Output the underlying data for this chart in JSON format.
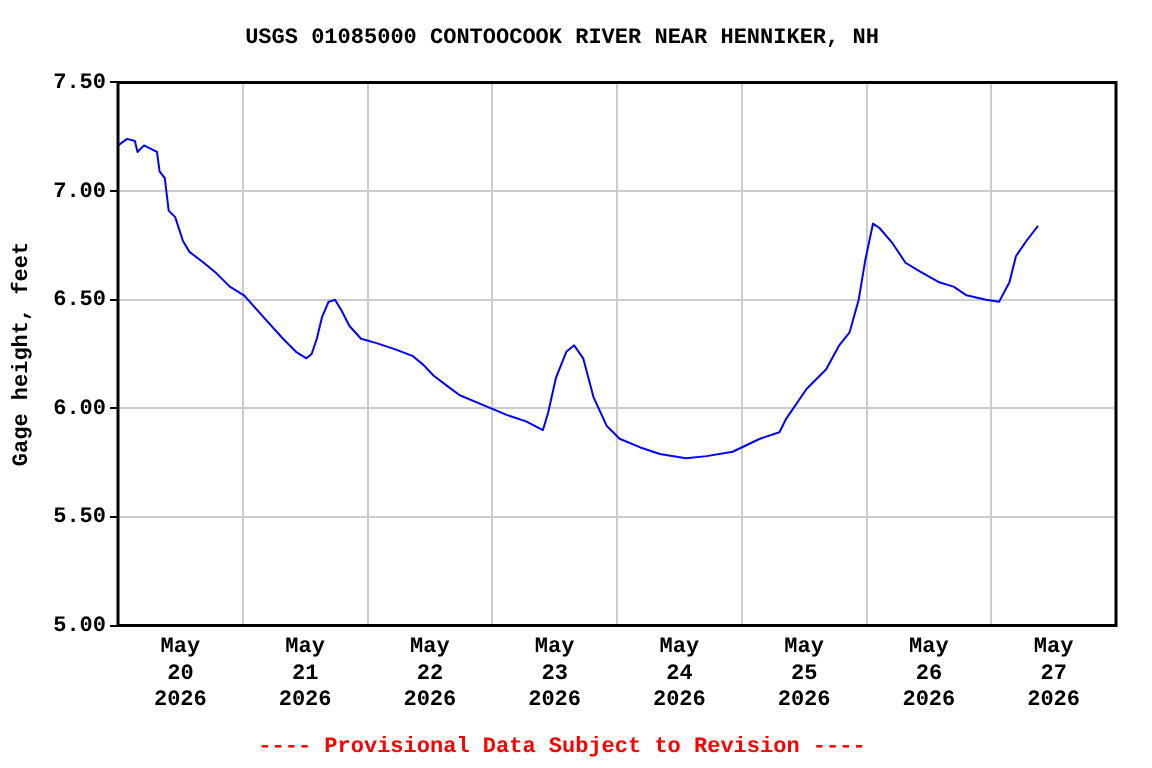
{
  "chart_data": {
    "type": "line",
    "title": "USGS 01085000 CONTOOCOOK RIVER NEAR HENNIKER, NH",
    "ylabel": "Gage height, feet",
    "annotations": [
      "---- Provisional Data Subject to Revision ----"
    ],
    "x": [
      "2026-05-20T00:00",
      "2026-05-20T01:45",
      "2026-05-20T03:15",
      "2026-05-20T03:45",
      "2026-05-20T05:00",
      "2026-05-20T07:30",
      "2026-05-20T08:00",
      "2026-05-20T09:00",
      "2026-05-20T09:45",
      "2026-05-20T11:00",
      "2026-05-20T12:30",
      "2026-05-20T13:45",
      "2026-05-20T16:30",
      "2026-05-20T19:00",
      "2026-05-20T21:30",
      "2026-05-21T00:15",
      "2026-05-21T04:00",
      "2026-05-21T07:45",
      "2026-05-21T10:15",
      "2026-05-21T12:15",
      "2026-05-21T13:15",
      "2026-05-21T14:15",
      "2026-05-21T15:15",
      "2026-05-21T16:30",
      "2026-05-21T17:45",
      "2026-05-21T19:00",
      "2026-05-21T20:30",
      "2026-05-21T22:45",
      "2026-05-22T01:45",
      "2026-05-22T05:30",
      "2026-05-22T08:45",
      "2026-05-22T10:45",
      "2026-05-22T12:45",
      "2026-05-22T15:30",
      "2026-05-22T17:45",
      "2026-05-22T22:45",
      "2026-05-23T02:45",
      "2026-05-23T06:30",
      "2026-05-23T09:45",
      "2026-05-23T10:45",
      "2026-05-23T12:15",
      "2026-05-23T14:15",
      "2026-05-23T15:45",
      "2026-05-23T17:30",
      "2026-05-23T19:30",
      "2026-05-23T22:00",
      "2026-05-24T00:30",
      "2026-05-24T04:30",
      "2026-05-24T08:15",
      "2026-05-24T13:15",
      "2026-05-24T17:15",
      "2026-05-24T22:15",
      "2026-05-25T03:30",
      "2026-05-25T07:15",
      "2026-05-25T08:30",
      "2026-05-25T12:30",
      "2026-05-25T16:15",
      "2026-05-25T18:45",
      "2026-05-25T20:45",
      "2026-05-25T22:30",
      "2026-05-25T23:45",
      "2026-05-26T01:15",
      "2026-05-26T02:30",
      "2026-05-26T05:00",
      "2026-05-26T07:30",
      "2026-05-26T10:15",
      "2026-05-26T14:00",
      "2026-05-26T16:45",
      "2026-05-26T19:15",
      "2026-05-26T23:00",
      "2026-05-27T01:30",
      "2026-05-27T03:30",
      "2026-05-27T04:45",
      "2026-05-27T06:45",
      "2026-05-27T09:00"
    ],
    "series": [
      {
        "color": "#0000ff",
        "values": [
          7.21,
          7.24,
          7.23,
          7.18,
          7.21,
          7.18,
          7.09,
          7.06,
          6.91,
          6.88,
          6.77,
          6.72,
          6.67,
          6.62,
          6.56,
          6.52,
          6.42,
          6.32,
          6.26,
          6.23,
          6.25,
          6.32,
          6.42,
          6.49,
          6.5,
          6.45,
          6.38,
          6.32,
          6.3,
          6.27,
          6.24,
          6.2,
          6.15,
          6.1,
          6.06,
          6.01,
          5.97,
          5.94,
          5.9,
          5.98,
          6.14,
          6.26,
          6.29,
          6.23,
          6.05,
          5.92,
          5.86,
          5.82,
          5.79,
          5.77,
          5.78,
          5.8,
          5.86,
          5.89,
          5.95,
          6.09,
          6.18,
          6.29,
          6.35,
          6.5,
          6.68,
          6.85,
          6.83,
          6.76,
          6.67,
          6.63,
          6.58,
          6.56,
          6.52,
          6.5,
          6.49,
          6.58,
          6.7,
          6.77,
          6.84
        ]
      }
    ],
    "xlim": [
      "2026-05-20T00:00",
      "2026-05-28T00:00"
    ],
    "xticks": [
      {
        "value": "2026-05-20T12:00",
        "label": "May 20 2026"
      },
      {
        "value": "2026-05-21T00:00",
        "label": null
      },
      {
        "value": "2026-05-21T12:00",
        "label": "May 21 2026"
      },
      {
        "value": "2026-05-22T00:00",
        "label": null
      },
      {
        "value": "2026-05-22T12:00",
        "label": "May 22 2026"
      },
      {
        "value": "2026-05-23T00:00",
        "label": null
      },
      {
        "value": "2026-05-23T12:00",
        "label": "May 23 2026"
      },
      {
        "value": "2026-05-24T00:00",
        "label": null
      },
      {
        "value": "2026-05-24T12:00",
        "label": "May 24 2026"
      },
      {
        "value": "2026-05-25T00:00",
        "label": null
      },
      {
        "value": "2026-05-25T12:00",
        "label": "May 25 2026"
      },
      {
        "value": "2026-05-26T00:00",
        "label": null
      },
      {
        "value": "2026-05-26T12:00",
        "label": "May 26 2026"
      },
      {
        "value": "2026-05-27T00:00",
        "label": null
      },
      {
        "value": "2026-05-27T12:00",
        "label": "May 27 2026"
      }
    ],
    "ylim": [
      5,
      7.5
    ],
    "yticks": [
      {
        "value": 5,
        "label": "5.00"
      },
      {
        "value": 5.5,
        "label": "5.50"
      },
      {
        "value": 6,
        "label": "6.00"
      },
      {
        "value": 6.5,
        "label": "6.50"
      },
      {
        "value": 7,
        "label": "7.00"
      },
      {
        "value": 7.5,
        "label": "7.50"
      }
    ],
    "grid": true,
    "marker": "none",
    "line_style": "solid",
    "legend": false
  }
}
